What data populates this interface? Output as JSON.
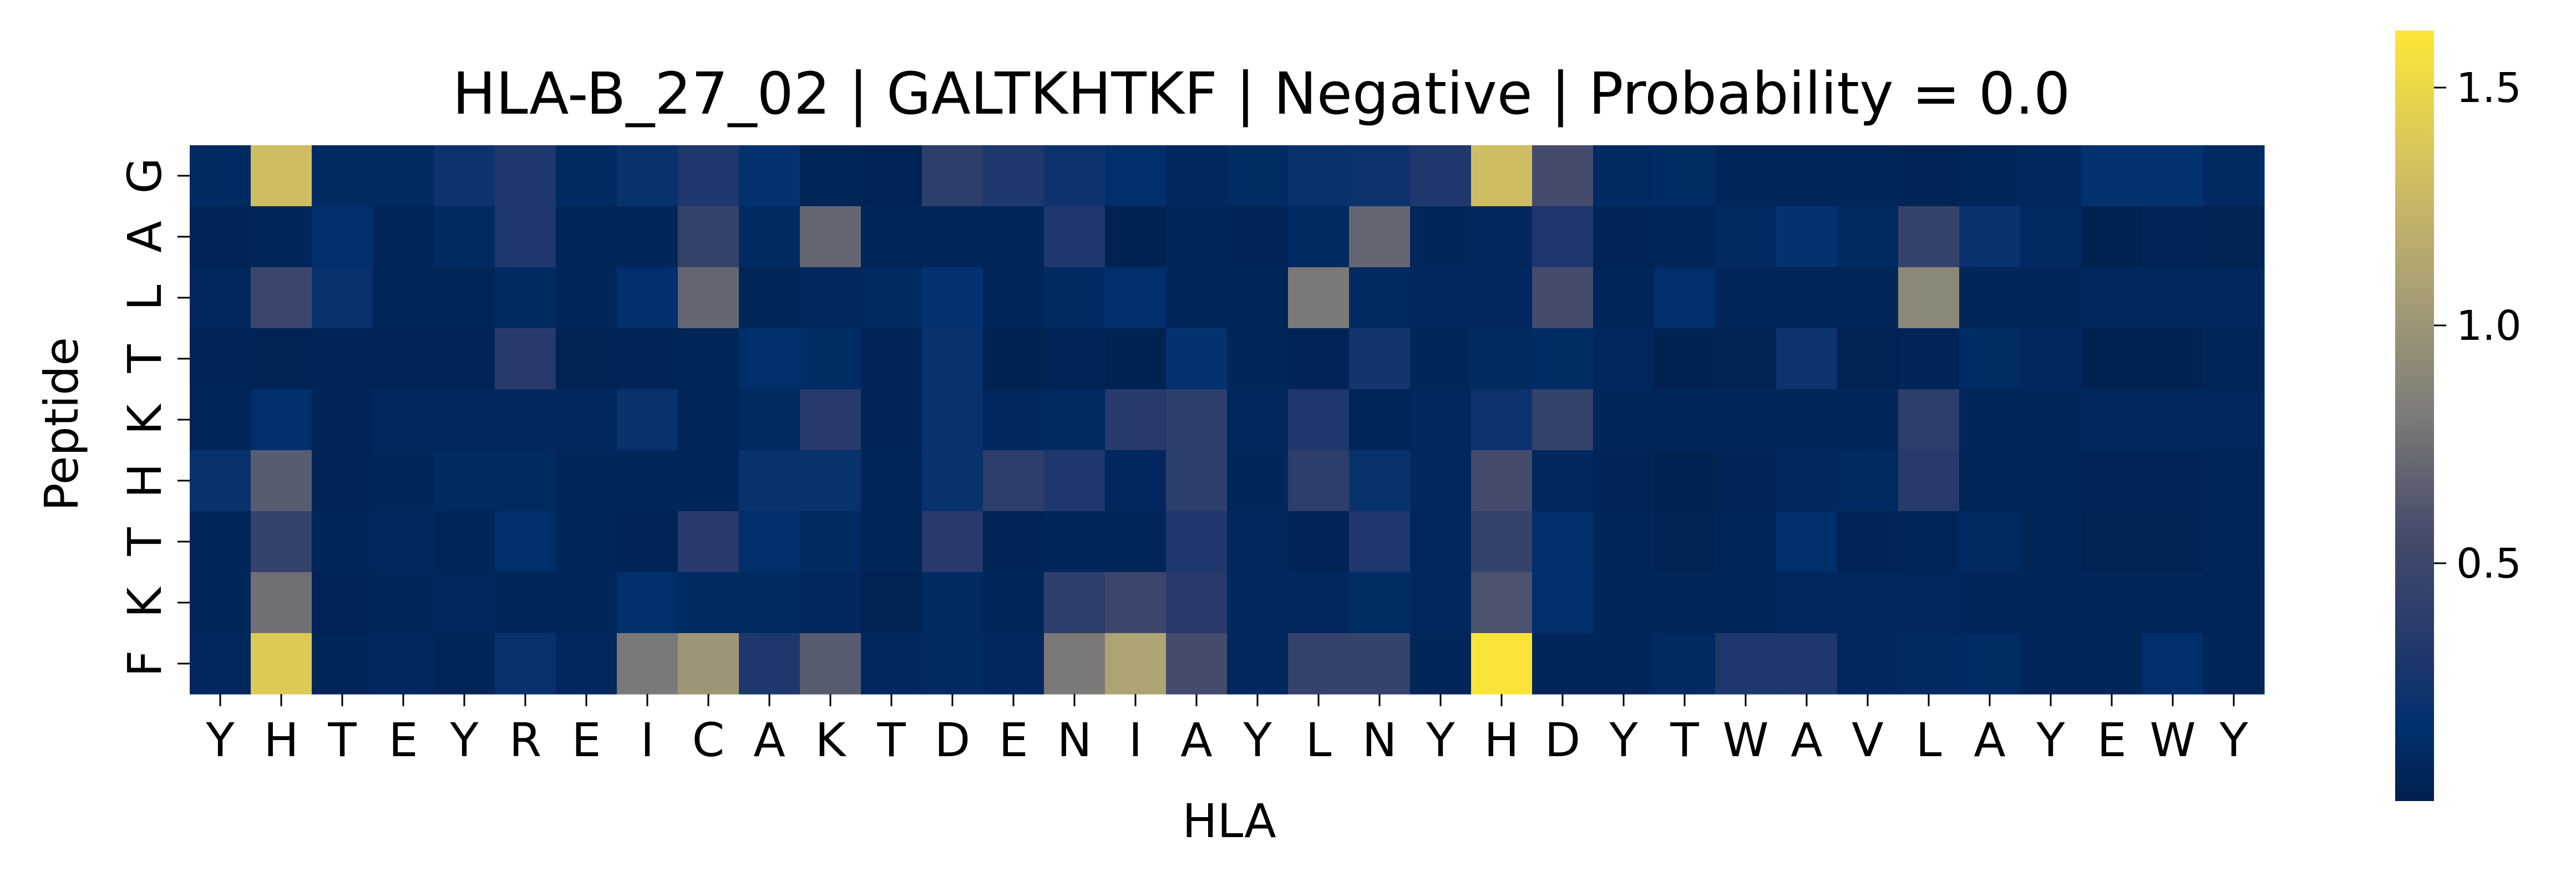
{
  "chart_data": {
    "type": "heatmap",
    "title": "HLA-B_27_02 | GALTKHTKF | Negative | Probability = 0.0",
    "xlabel": "HLA",
    "ylabel": "Peptide",
    "x_categories": [
      "Y",
      "H",
      "T",
      "E",
      "Y",
      "R",
      "E",
      "I",
      "C",
      "A",
      "K",
      "T",
      "D",
      "E",
      "N",
      "I",
      "A",
      "Y",
      "L",
      "N",
      "Y",
      "H",
      "D",
      "Y",
      "T",
      "W",
      "A",
      "V",
      "L",
      "A",
      "Y",
      "E",
      "W",
      "Y"
    ],
    "y_categories": [
      "G",
      "A",
      "L",
      "T",
      "K",
      "H",
      "T",
      "K",
      "F"
    ],
    "values": [
      [
        0.1,
        1.3,
        0.1,
        0.1,
        0.22,
        0.3,
        0.1,
        0.2,
        0.3,
        0.18,
        0.05,
        0.04,
        0.4,
        0.3,
        0.22,
        0.15,
        0.08,
        0.12,
        0.2,
        0.22,
        0.3,
        1.3,
        0.55,
        0.1,
        0.12,
        0.06,
        0.06,
        0.06,
        0.04,
        0.06,
        0.08,
        0.18,
        0.18,
        0.1
      ],
      [
        0.04,
        0.06,
        0.15,
        0.06,
        0.1,
        0.3,
        0.05,
        0.06,
        0.45,
        0.1,
        0.7,
        0.05,
        0.06,
        0.05,
        0.3,
        0.02,
        0.06,
        0.04,
        0.1,
        0.7,
        0.06,
        0.08,
        0.3,
        0.04,
        0.05,
        0.1,
        0.18,
        0.1,
        0.45,
        0.2,
        0.1,
        0.02,
        0.04,
        0.03
      ],
      [
        0.08,
        0.5,
        0.2,
        0.05,
        0.05,
        0.1,
        0.06,
        0.15,
        0.7,
        0.05,
        0.08,
        0.1,
        0.18,
        0.05,
        0.1,
        0.15,
        0.06,
        0.05,
        0.8,
        0.1,
        0.08,
        0.08,
        0.55,
        0.05,
        0.15,
        0.06,
        0.05,
        0.05,
        0.9,
        0.06,
        0.06,
        0.08,
        0.08,
        0.08
      ],
      [
        0.04,
        0.03,
        0.04,
        0.04,
        0.04,
        0.35,
        0.03,
        0.04,
        0.05,
        0.15,
        0.12,
        0.04,
        0.2,
        0.02,
        0.04,
        0.02,
        0.18,
        0.06,
        0.04,
        0.25,
        0.06,
        0.1,
        0.12,
        0.08,
        0.02,
        0.03,
        0.22,
        0.03,
        0.04,
        0.12,
        0.08,
        0.02,
        0.02,
        0.05
      ],
      [
        0.05,
        0.15,
        0.04,
        0.08,
        0.08,
        0.08,
        0.08,
        0.2,
        0.05,
        0.1,
        0.35,
        0.04,
        0.2,
        0.08,
        0.1,
        0.35,
        0.4,
        0.08,
        0.3,
        0.05,
        0.08,
        0.22,
        0.45,
        0.06,
        0.06,
        0.06,
        0.06,
        0.06,
        0.4,
        0.06,
        0.06,
        0.08,
        0.08,
        0.08
      ],
      [
        0.2,
        0.65,
        0.04,
        0.06,
        0.1,
        0.1,
        0.06,
        0.06,
        0.06,
        0.2,
        0.2,
        0.05,
        0.2,
        0.4,
        0.3,
        0.08,
        0.4,
        0.06,
        0.4,
        0.2,
        0.08,
        0.55,
        0.08,
        0.04,
        0.02,
        0.04,
        0.08,
        0.1,
        0.35,
        0.05,
        0.05,
        0.04,
        0.04,
        0.05
      ],
      [
        0.06,
        0.45,
        0.06,
        0.08,
        0.05,
        0.15,
        0.06,
        0.04,
        0.35,
        0.15,
        0.1,
        0.05,
        0.35,
        0.04,
        0.06,
        0.06,
        0.3,
        0.08,
        0.04,
        0.3,
        0.08,
        0.45,
        0.15,
        0.05,
        0.03,
        0.05,
        0.15,
        0.04,
        0.05,
        0.1,
        0.05,
        0.03,
        0.03,
        0.05
      ],
      [
        0.06,
        0.75,
        0.04,
        0.06,
        0.08,
        0.06,
        0.06,
        0.15,
        0.1,
        0.1,
        0.08,
        0.03,
        0.1,
        0.06,
        0.4,
        0.5,
        0.35,
        0.08,
        0.08,
        0.12,
        0.08,
        0.6,
        0.15,
        0.06,
        0.06,
        0.06,
        0.08,
        0.08,
        0.08,
        0.06,
        0.06,
        0.06,
        0.06,
        0.06
      ],
      [
        0.08,
        1.4,
        0.06,
        0.08,
        0.05,
        0.2,
        0.08,
        0.8,
        1.0,
        0.3,
        0.65,
        0.08,
        0.1,
        0.08,
        0.8,
        1.1,
        0.55,
        0.08,
        0.45,
        0.45,
        0.06,
        1.6,
        0.06,
        0.06,
        0.1,
        0.3,
        0.3,
        0.08,
        0.1,
        0.12,
        0.06,
        0.06,
        0.15,
        0.06
      ]
    ],
    "colormap": "cividis",
    "colorbar": {
      "vmin": 0.0,
      "vmax": 1.62,
      "ticks": [
        0.5,
        1.0,
        1.5
      ],
      "tick_labels": [
        "0.5",
        "1.0",
        "1.5"
      ]
    },
    "grid": false
  }
}
